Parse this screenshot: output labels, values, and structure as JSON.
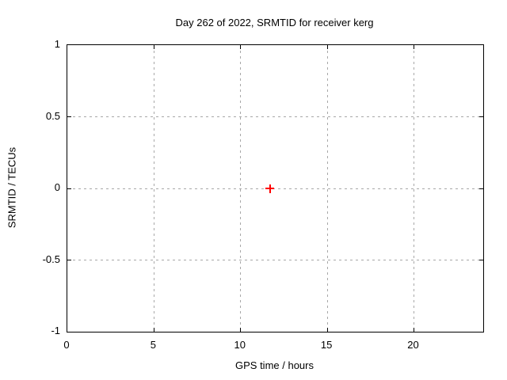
{
  "chart_data": {
    "type": "scatter",
    "title": "Day 262 of 2022, SRMTID for receiver kerg",
    "xlabel": "GPS time / hours",
    "ylabel": "SRMTID / TECUs",
    "xlim": [
      0,
      24
    ],
    "ylim": [
      -1,
      1
    ],
    "xticks": [
      0,
      5,
      10,
      15,
      20
    ],
    "xtick_labels": [
      "0",
      "5",
      "10",
      "15",
      "20"
    ],
    "yticks": [
      -1,
      -0.5,
      0,
      0.5,
      1
    ],
    "ytick_labels": [
      "-1",
      "-0.5",
      "0",
      "0.5",
      "1"
    ],
    "grid": true,
    "legend": "none",
    "series": [
      {
        "name": "SRMTID point",
        "marker": "plus",
        "color": "#ff0000",
        "points": [
          {
            "x": 11.7,
            "y": 0
          }
        ]
      }
    ]
  },
  "colors": {
    "background": "#ffffff",
    "border": "#000000",
    "grid": "#a8a8a8",
    "text": "#000000",
    "point": "#ff0000"
  }
}
